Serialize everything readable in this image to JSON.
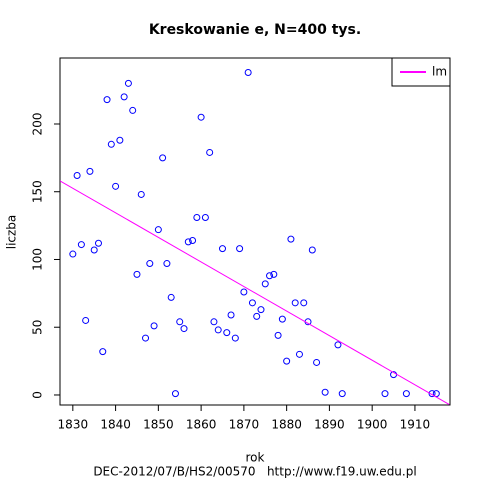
{
  "chart_data": {
    "type": "scatter",
    "title": "Kreskowanie e, N=400 tys.",
    "x_label": "rok",
    "y_label": "liczba",
    "footer": "DEC-2012/07/B/HS2/00570   http://www.f19.uw.edu.pl",
    "series": [
      {
        "name": "points",
        "color": "#0000ff",
        "x": [
          1830,
          1831,
          1832,
          1833,
          1834,
          1835,
          1836,
          1837,
          1838,
          1839,
          1840,
          1841,
          1842,
          1843,
          1844,
          1845,
          1846,
          1847,
          1848,
          1849,
          1850,
          1851,
          1852,
          1853,
          1854,
          1855,
          1856,
          1857,
          1858,
          1859,
          1860,
          1861,
          1862,
          1863,
          1864,
          1865,
          1866,
          1867,
          1868,
          1869,
          1870,
          1871,
          1872,
          1873,
          1874,
          1875,
          1876,
          1877,
          1878,
          1879,
          1880,
          1881,
          1882,
          1883,
          1884,
          1885,
          1886,
          1887,
          1889,
          1892,
          1893,
          1903,
          1905,
          1908,
          1914,
          1915
        ],
        "values": [
          104,
          162,
          111,
          55,
          165,
          107,
          112,
          32,
          218,
          185,
          154,
          188,
          220,
          230,
          210,
          89,
          148,
          42,
          97,
          51,
          122,
          175,
          97,
          72,
          1,
          54,
          49,
          113,
          114,
          131,
          205,
          131,
          179,
          54,
          48,
          108,
          46,
          59,
          42,
          108,
          76,
          238,
          68,
          58,
          63,
          82,
          88,
          89,
          44,
          56,
          25,
          115,
          68,
          30,
          68,
          54,
          107,
          24,
          2,
          37,
          1,
          1,
          15,
          1,
          1,
          1
        ]
      }
    ],
    "trend": {
      "name": "lm",
      "color": "#ff00ff",
      "x": [
        1827,
        1918
      ],
      "values": [
        158,
        -7
      ]
    },
    "legend": "top-right",
    "xlim": [
      1827,
      1918.2
    ],
    "ylim": [
      -7.4,
      248.7
    ],
    "xticks": [
      1830,
      1840,
      1850,
      1860,
      1870,
      1880,
      1890,
      1900,
      1910
    ],
    "yticks": [
      0,
      50,
      100,
      150,
      200
    ]
  }
}
